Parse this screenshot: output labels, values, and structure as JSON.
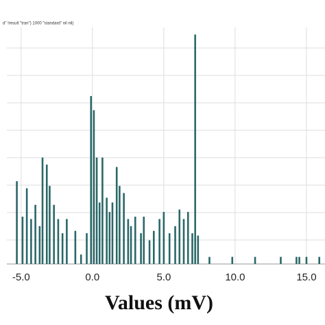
{
  "chart_data": {
    "type": "bar",
    "title": "d\" !result \"tran\") 1000 \"standard\" nil nil)",
    "x_label": "Values (mV)",
    "x": [
      -5.3,
      -4.9,
      -4.6,
      -4.3,
      -4.0,
      -3.7,
      -3.5,
      -3.2,
      -3.0,
      -2.7,
      -2.4,
      -2.1,
      -1.8,
      -1.2,
      -0.8,
      -0.4,
      -0.1,
      0.1,
      0.3,
      0.5,
      0.7,
      1.0,
      1.2,
      1.4,
      1.7,
      1.9,
      2.2,
      2.5,
      2.7,
      3.0,
      3.4,
      3.6,
      4.0,
      4.3,
      4.7,
      5.0,
      5.4,
      5.8,
      6.1,
      6.4,
      6.7,
      7.0,
      7.2,
      7.4,
      8.2,
      9.8,
      11.4,
      13.2,
      14.3,
      14.5,
      15.0,
      15.9
    ],
    "values": [
      35,
      20,
      32,
      19,
      25,
      16,
      45,
      42,
      33,
      25,
      19,
      13,
      19,
      14,
      4,
      13,
      71,
      65,
      45,
      26,
      45,
      28,
      22,
      26,
      41,
      33,
      30,
      19,
      16,
      20,
      13,
      20,
      10,
      14,
      19,
      22,
      13,
      16,
      23,
      19,
      22,
      13,
      97,
      12,
      3,
      3,
      3,
      3,
      3,
      3,
      3,
      3
    ],
    "color": "#2a6767",
    "xlim": [
      -6.0,
      16.3
    ],
    "ylim": [
      0,
      100
    ],
    "xticks": [
      {
        "value": -5,
        "label": "-5.0"
      },
      {
        "value": 0,
        "label": "0.0"
      },
      {
        "value": 5,
        "label": "5.0"
      },
      {
        "value": 10,
        "label": "10.0"
      },
      {
        "value": 15,
        "label": "15.0"
      }
    ],
    "grid": true
  }
}
